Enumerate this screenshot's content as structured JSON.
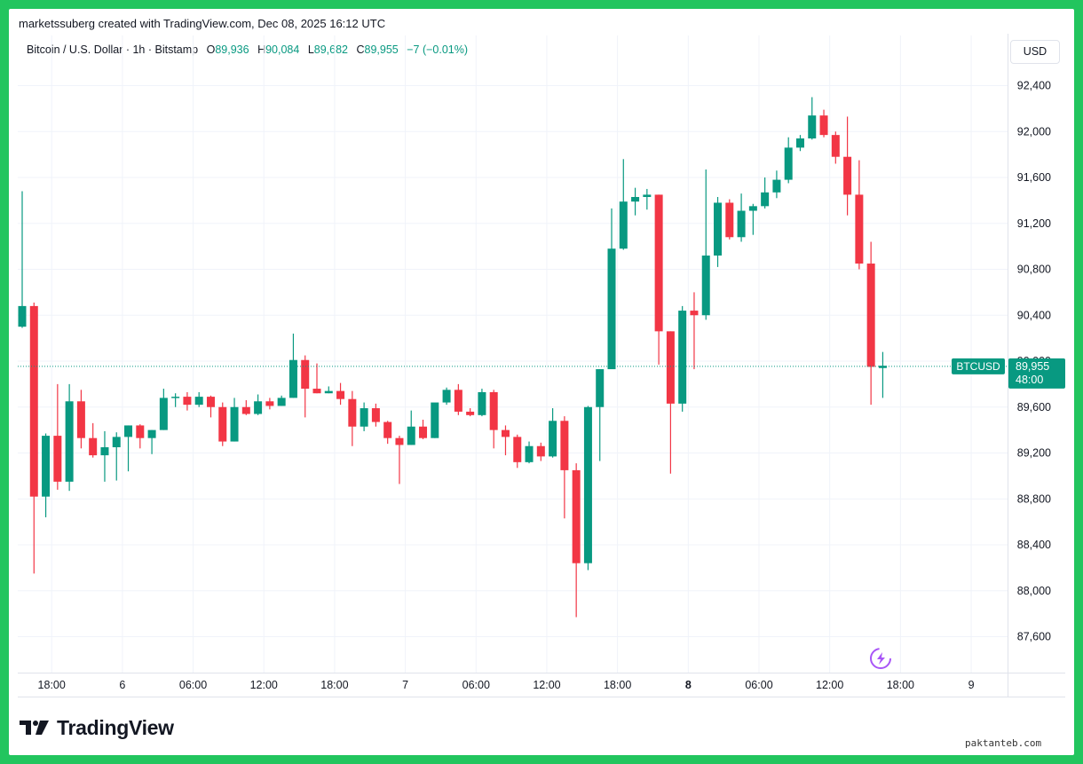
{
  "header": {
    "credit": "marketssuberg created with TradingView.com, Dec 08, 2025 16:12 UTC"
  },
  "ohlc": {
    "instrument": "Bitcoin / U.S. Dollar · 1h · Bitstamp",
    "o_key": "O",
    "o_val": "89,936",
    "h_key": "H",
    "h_val": "90,084",
    "l_key": "L",
    "l_val": "89,682",
    "c_key": "C",
    "c_val": "89,955",
    "change": "−7 (−0.01%)"
  },
  "currency_button": "USD",
  "price_tag": {
    "symbol": "BTCUSD",
    "price": "89,955",
    "countdown": "48:00"
  },
  "footer": {
    "brand": "TradingView"
  },
  "watermark": "paktanteb.com",
  "colors": {
    "up": "#089981",
    "down": "#f23645",
    "frame": "#22c55e",
    "tag": "#089981"
  },
  "chart_data": {
    "type": "candlestick",
    "symbol": "BTCUSD",
    "interval": "1h",
    "y_ticks": [
      92400,
      92000,
      91600,
      91200,
      90800,
      90400,
      90000,
      89600,
      89200,
      88800,
      88400,
      88000,
      87600
    ],
    "y_tick_labels": [
      "92,400",
      "92,000",
      "91,600",
      "91,200",
      "90,800",
      "90,400",
      "90,000",
      "89,600",
      "89,200",
      "88,800",
      "88,400",
      "88,000",
      "87,600"
    ],
    "x_ticks": [
      {
        "index": 2.5,
        "label": "18:00",
        "bold": false
      },
      {
        "index": 8.5,
        "label": "6",
        "bold": false
      },
      {
        "index": 14.5,
        "label": "06:00",
        "bold": false
      },
      {
        "index": 20.5,
        "label": "12:00",
        "bold": false
      },
      {
        "index": 26.5,
        "label": "18:00",
        "bold": false
      },
      {
        "index": 32.5,
        "label": "7",
        "bold": false
      },
      {
        "index": 38.5,
        "label": "06:00",
        "bold": false
      },
      {
        "index": 44.5,
        "label": "12:00",
        "bold": false
      },
      {
        "index": 50.5,
        "label": "18:00",
        "bold": false
      },
      {
        "index": 56.5,
        "label": "8",
        "bold": true
      },
      {
        "index": 62.5,
        "label": "06:00",
        "bold": false
      },
      {
        "index": 68.5,
        "label": "12:00",
        "bold": false
      },
      {
        "index": 74.5,
        "label": "18:00",
        "bold": false
      },
      {
        "index": 80.5,
        "label": "9",
        "bold": false
      }
    ],
    "current_price": 89955,
    "candles": [
      {
        "o": 90300,
        "h": 91480,
        "l": 90290,
        "c": 90480
      },
      {
        "o": 90480,
        "h": 90510,
        "l": 88150,
        "c": 88820
      },
      {
        "o": 88820,
        "h": 89370,
        "l": 88640,
        "c": 89350
      },
      {
        "o": 89350,
        "h": 89800,
        "l": 88880,
        "c": 88950
      },
      {
        "o": 88950,
        "h": 89800,
        "l": 88870,
        "c": 89650
      },
      {
        "o": 89650,
        "h": 89750,
        "l": 89240,
        "c": 89330
      },
      {
        "o": 89330,
        "h": 89460,
        "l": 89160,
        "c": 89180
      },
      {
        "o": 89180,
        "h": 89390,
        "l": 88950,
        "c": 89250
      },
      {
        "o": 89250,
        "h": 89380,
        "l": 88960,
        "c": 89340
      },
      {
        "o": 89340,
        "h": 89440,
        "l": 89040,
        "c": 89440
      },
      {
        "o": 89440,
        "h": 89450,
        "l": 89240,
        "c": 89330
      },
      {
        "o": 89330,
        "h": 89400,
        "l": 89190,
        "c": 89400
      },
      {
        "o": 89400,
        "h": 89760,
        "l": 89400,
        "c": 89680
      },
      {
        "o": 89680,
        "h": 89720,
        "l": 89600,
        "c": 89690
      },
      {
        "o": 89690,
        "h": 89730,
        "l": 89570,
        "c": 89620
      },
      {
        "o": 89620,
        "h": 89730,
        "l": 89600,
        "c": 89690
      },
      {
        "o": 89690,
        "h": 89700,
        "l": 89510,
        "c": 89600
      },
      {
        "o": 89600,
        "h": 89640,
        "l": 89260,
        "c": 89300
      },
      {
        "o": 89300,
        "h": 89680,
        "l": 89300,
        "c": 89600
      },
      {
        "o": 89600,
        "h": 89660,
        "l": 89530,
        "c": 89540
      },
      {
        "o": 89540,
        "h": 89710,
        "l": 89530,
        "c": 89650
      },
      {
        "o": 89650,
        "h": 89680,
        "l": 89580,
        "c": 89610
      },
      {
        "o": 89610,
        "h": 89700,
        "l": 89610,
        "c": 89680
      },
      {
        "o": 89680,
        "h": 90240,
        "l": 89680,
        "c": 90010
      },
      {
        "o": 90010,
        "h": 90050,
        "l": 89510,
        "c": 89760
      },
      {
        "o": 89760,
        "h": 89980,
        "l": 89720,
        "c": 89720
      },
      {
        "o": 89720,
        "h": 89780,
        "l": 89720,
        "c": 89740
      },
      {
        "o": 89740,
        "h": 89810,
        "l": 89620,
        "c": 89670
      },
      {
        "o": 89670,
        "h": 89740,
        "l": 89260,
        "c": 89430
      },
      {
        "o": 89430,
        "h": 89640,
        "l": 89390,
        "c": 89590
      },
      {
        "o": 89590,
        "h": 89630,
        "l": 89430,
        "c": 89470
      },
      {
        "o": 89470,
        "h": 89480,
        "l": 89280,
        "c": 89330
      },
      {
        "o": 89330,
        "h": 89350,
        "l": 88930,
        "c": 89270
      },
      {
        "o": 89270,
        "h": 89570,
        "l": 89270,
        "c": 89430
      },
      {
        "o": 89430,
        "h": 89490,
        "l": 89320,
        "c": 89330
      },
      {
        "o": 89330,
        "h": 89610,
        "l": 89330,
        "c": 89640
      },
      {
        "o": 89640,
        "h": 89770,
        "l": 89620,
        "c": 89750
      },
      {
        "o": 89750,
        "h": 89800,
        "l": 89530,
        "c": 89560
      },
      {
        "o": 89560,
        "h": 89590,
        "l": 89520,
        "c": 89530
      },
      {
        "o": 89530,
        "h": 89760,
        "l": 89520,
        "c": 89730
      },
      {
        "o": 89730,
        "h": 89750,
        "l": 89240,
        "c": 89400
      },
      {
        "o": 89400,
        "h": 89440,
        "l": 89180,
        "c": 89340
      },
      {
        "o": 89340,
        "h": 89360,
        "l": 89070,
        "c": 89120
      },
      {
        "o": 89120,
        "h": 89300,
        "l": 89110,
        "c": 89260
      },
      {
        "o": 89260,
        "h": 89290,
        "l": 89130,
        "c": 89170
      },
      {
        "o": 89170,
        "h": 89590,
        "l": 89160,
        "c": 89480
      },
      {
        "o": 89480,
        "h": 89520,
        "l": 88630,
        "c": 89050
      },
      {
        "o": 89050,
        "h": 89110,
        "l": 87770,
        "c": 88240
      },
      {
        "o": 88240,
        "h": 89610,
        "l": 88180,
        "c": 89600
      },
      {
        "o": 89600,
        "h": 89930,
        "l": 89130,
        "c": 89930
      },
      {
        "o": 89930,
        "h": 91330,
        "l": 89930,
        "c": 90980
      },
      {
        "o": 90980,
        "h": 91760,
        "l": 90970,
        "c": 91390
      },
      {
        "o": 91390,
        "h": 91510,
        "l": 91270,
        "c": 91430
      },
      {
        "o": 91430,
        "h": 91500,
        "l": 91320,
        "c": 91450
      },
      {
        "o": 91450,
        "h": 91450,
        "l": 89970,
        "c": 90260
      },
      {
        "o": 90260,
        "h": 90260,
        "l": 89020,
        "c": 89630
      },
      {
        "o": 89630,
        "h": 90480,
        "l": 89560,
        "c": 90440
      },
      {
        "o": 90440,
        "h": 90600,
        "l": 89930,
        "c": 90400
      },
      {
        "o": 90400,
        "h": 91670,
        "l": 90360,
        "c": 90920
      },
      {
        "o": 90920,
        "h": 91430,
        "l": 90820,
        "c": 91380
      },
      {
        "o": 91380,
        "h": 91410,
        "l": 91060,
        "c": 91080
      },
      {
        "o": 91080,
        "h": 91460,
        "l": 91040,
        "c": 91310
      },
      {
        "o": 91310,
        "h": 91370,
        "l": 91100,
        "c": 91350
      },
      {
        "o": 91350,
        "h": 91600,
        "l": 91330,
        "c": 91470
      },
      {
        "o": 91470,
        "h": 91660,
        "l": 91420,
        "c": 91580
      },
      {
        "o": 91580,
        "h": 91950,
        "l": 91550,
        "c": 91860
      },
      {
        "o": 91860,
        "h": 91970,
        "l": 91830,
        "c": 91940
      },
      {
        "o": 91940,
        "h": 92300,
        "l": 91930,
        "c": 92140
      },
      {
        "o": 92140,
        "h": 92190,
        "l": 91950,
        "c": 91970
      },
      {
        "o": 91970,
        "h": 92000,
        "l": 91720,
        "c": 91780
      },
      {
        "o": 91780,
        "h": 92130,
        "l": 91270,
        "c": 91450
      },
      {
        "o": 91450,
        "h": 91750,
        "l": 90800,
        "c": 90850
      },
      {
        "o": 90850,
        "h": 91040,
        "l": 89620,
        "c": 89950
      },
      {
        "o": 89940,
        "h": 90080,
        "l": 89680,
        "c": 89960
      }
    ]
  }
}
